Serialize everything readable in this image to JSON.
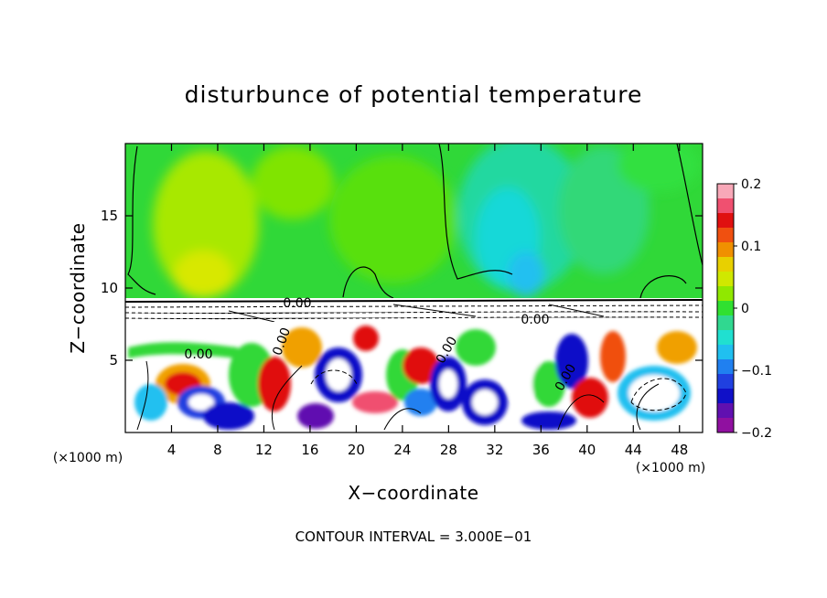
{
  "chart_data": {
    "type": "heatmap",
    "title": "disturbunce of potential temperature",
    "xlabel": "X−coordinate",
    "ylabel": "Z−coordinate",
    "x_unit_left": "(×1000 m)",
    "x_unit_right": "(×1000 m)",
    "xlim": [
      0,
      50
    ],
    "ylim": [
      0,
      20
    ],
    "x_ticks": [
      4,
      8,
      12,
      16,
      20,
      24,
      28,
      32,
      36,
      40,
      44,
      48
    ],
    "x_tick_labels": [
      "4",
      "8",
      "12",
      "16",
      "20",
      "24",
      "28",
      "32",
      "36",
      "40",
      "44",
      "48"
    ],
    "y_ticks": [
      5,
      10,
      15
    ],
    "y_tick_labels": [
      "5",
      "10",
      "15"
    ],
    "colorbar": {
      "range": [
        -0.2,
        0.2
      ],
      "labels": [
        "0.2",
        "0.1",
        "0",
        "−0.1",
        "−0.2"
      ],
      "label_values": [
        0.2,
        0.1,
        0,
        -0.1,
        -0.2
      ],
      "colors": [
        "#f8a8b8",
        "#f05070",
        "#e01010",
        "#f05010",
        "#f09000",
        "#e8d000",
        "#d0e800",
        "#90e800",
        "#30e030",
        "#30d890",
        "#20e0d0",
        "#20c0f0",
        "#2080f0",
        "#2040e0",
        "#1010c8",
        "#6010b0",
        "#9010a0"
      ]
    },
    "contour_labels": [
      "0.00",
      "0.00",
      "0.00",
      "0.00",
      "0.00",
      "0.00"
    ],
    "footer": "CONTOUR INTERVAL = 3.000E−01",
    "grid": false,
    "legend": "colorbar right"
  }
}
